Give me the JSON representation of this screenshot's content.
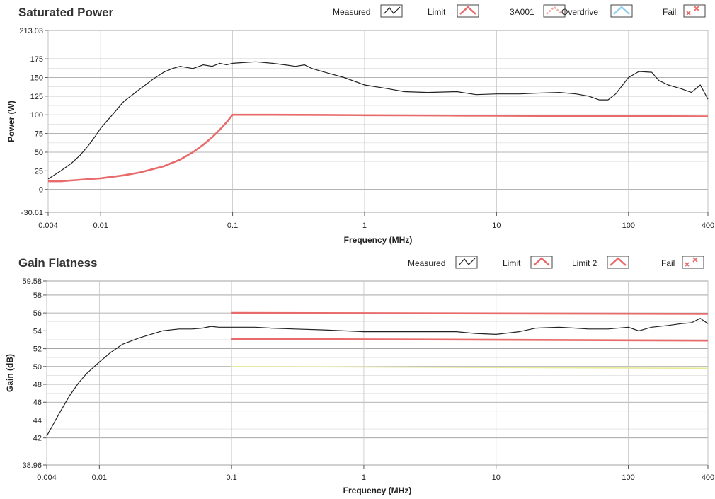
{
  "chart_data": [
    {
      "type": "line",
      "title": "Saturated Power",
      "xlabel": "Frequency (MHz)",
      "ylabel": "Power (W)",
      "xscale": "log",
      "xlim": [
        0.004,
        400
      ],
      "ylim": [
        -30.61,
        213.03
      ],
      "xticks": [
        0.004,
        0.01,
        0.1,
        1,
        10,
        100,
        400
      ],
      "xtick_labels": [
        "0.004",
        "0.01",
        "0.1",
        "1",
        "10",
        "100",
        "400"
      ],
      "yticks": [
        -30.61,
        0,
        25,
        50,
        75,
        100,
        125,
        150,
        175,
        213.03
      ],
      "ytick_labels": [
        "-30.61",
        "0",
        "25",
        "50",
        "75",
        "100",
        "125",
        "150",
        "175",
        "213.03"
      ],
      "grid": true,
      "legend_position": "top-right",
      "legend": [
        {
          "label": "Measured",
          "color": "#222222",
          "style": "line"
        },
        {
          "label": "Limit",
          "color": "#e86a6a",
          "style": "line"
        },
        {
          "label": "3A001",
          "color": "#f0a9a0",
          "style": "dashed"
        },
        {
          "label": "Overdrive",
          "color": "#8fd0f0",
          "style": "line"
        },
        {
          "label": "Fail",
          "color": "#e86a6a",
          "style": "marker"
        }
      ],
      "series": [
        {
          "name": "Measured",
          "color": "#222222",
          "x": [
            0.004,
            0.005,
            0.006,
            0.007,
            0.008,
            0.009,
            0.01,
            0.012,
            0.015,
            0.02,
            0.025,
            0.03,
            0.035,
            0.04,
            0.05,
            0.06,
            0.07,
            0.08,
            0.09,
            0.1,
            0.12,
            0.15,
            0.2,
            0.25,
            0.3,
            0.35,
            0.4,
            0.5,
            0.7,
            1,
            1.5,
            2,
            3,
            5,
            7,
            10,
            15,
            20,
            30,
            40,
            50,
            60,
            70,
            80,
            100,
            120,
            150,
            170,
            200,
            250,
            300,
            350,
            400
          ],
          "y": [
            14,
            25,
            35,
            46,
            58,
            70,
            82,
            98,
            118,
            135,
            148,
            157,
            162,
            165,
            162,
            167,
            165,
            169,
            167,
            169,
            170,
            171,
            169,
            167,
            165,
            167,
            162,
            157,
            150,
            140,
            135,
            131,
            130,
            131,
            127,
            128,
            128,
            129,
            130,
            128,
            125,
            120,
            120,
            128,
            150,
            158,
            157,
            146,
            140,
            135,
            130,
            140,
            121
          ]
        },
        {
          "name": "Limit",
          "color": "#e86a6a",
          "x": [
            0.004,
            0.005,
            0.007,
            0.01,
            0.015,
            0.02,
            0.03,
            0.04,
            0.05,
            0.06,
            0.07,
            0.08,
            0.09,
            0.1,
            0.2,
            0.5,
            1,
            2,
            5,
            10,
            20,
            50,
            100,
            200,
            400
          ],
          "y": [
            11,
            11,
            13,
            15,
            19,
            23,
            31,
            40,
            50,
            60,
            70,
            80,
            90,
            100,
            100,
            99.8,
            99.5,
            99.3,
            99,
            98.8,
            98.6,
            98.4,
            98.2,
            98,
            97.8
          ]
        }
      ]
    },
    {
      "type": "line",
      "title": "Gain Flatness",
      "xlabel": "Frequency (MHz)",
      "ylabel": "Gain (dB)",
      "xscale": "log",
      "xlim": [
        0.004,
        400
      ],
      "ylim": [
        38.96,
        59.58
      ],
      "xticks": [
        0.004,
        0.01,
        0.1,
        1,
        10,
        100,
        400
      ],
      "xtick_labels": [
        "0.004",
        "0.01",
        "0.1",
        "1",
        "10",
        "100",
        "400"
      ],
      "yticks": [
        38.96,
        42,
        44,
        46,
        48,
        50,
        52,
        54,
        56,
        58,
        59.58
      ],
      "ytick_labels": [
        "38.96",
        "42",
        "44",
        "46",
        "48",
        "50",
        "52",
        "54",
        "56",
        "58",
        "59.58"
      ],
      "grid": true,
      "legend_position": "top-right",
      "legend": [
        {
          "label": "Measured",
          "color": "#222222",
          "style": "line"
        },
        {
          "label": "Limit",
          "color": "#e86a6a",
          "style": "line"
        },
        {
          "label": "Limit 2",
          "color": "#e86a6a",
          "style": "line"
        },
        {
          "label": "Fail",
          "color": "#e86a6a",
          "style": "marker"
        }
      ],
      "series": [
        {
          "name": "Measured",
          "color": "#222222",
          "x": [
            0.004,
            0.005,
            0.006,
            0.007,
            0.008,
            0.01,
            0.012,
            0.015,
            0.02,
            0.03,
            0.04,
            0.05,
            0.06,
            0.07,
            0.08,
            0.1,
            0.15,
            0.2,
            0.3,
            0.5,
            1,
            2,
            3,
            5,
            7,
            10,
            15,
            20,
            30,
            40,
            50,
            70,
            100,
            120,
            150,
            200,
            250,
            300,
            350,
            400
          ],
          "y": [
            42.2,
            44.8,
            46.8,
            48.2,
            49.2,
            50.5,
            51.5,
            52.5,
            53.2,
            54.0,
            54.2,
            54.2,
            54.3,
            54.5,
            54.4,
            54.4,
            54.4,
            54.3,
            54.2,
            54.1,
            53.9,
            53.9,
            53.9,
            53.9,
            53.7,
            53.6,
            53.9,
            54.3,
            54.4,
            54.3,
            54.2,
            54.2,
            54.4,
            54.0,
            54.4,
            54.6,
            54.8,
            54.9,
            55.4,
            54.8
          ]
        },
        {
          "name": "Limit",
          "color": "#e86a6a",
          "x": [
            0.1,
            400
          ],
          "y": [
            56.0,
            55.9
          ]
        },
        {
          "name": "Limit 2",
          "color": "#e86a6a",
          "x": [
            0.1,
            400
          ],
          "y": [
            53.1,
            52.9
          ]
        },
        {
          "name": "",
          "color": "#e6ea9a",
          "x": [
            0.1,
            400
          ],
          "y": [
            50.0,
            49.8
          ]
        }
      ]
    }
  ]
}
